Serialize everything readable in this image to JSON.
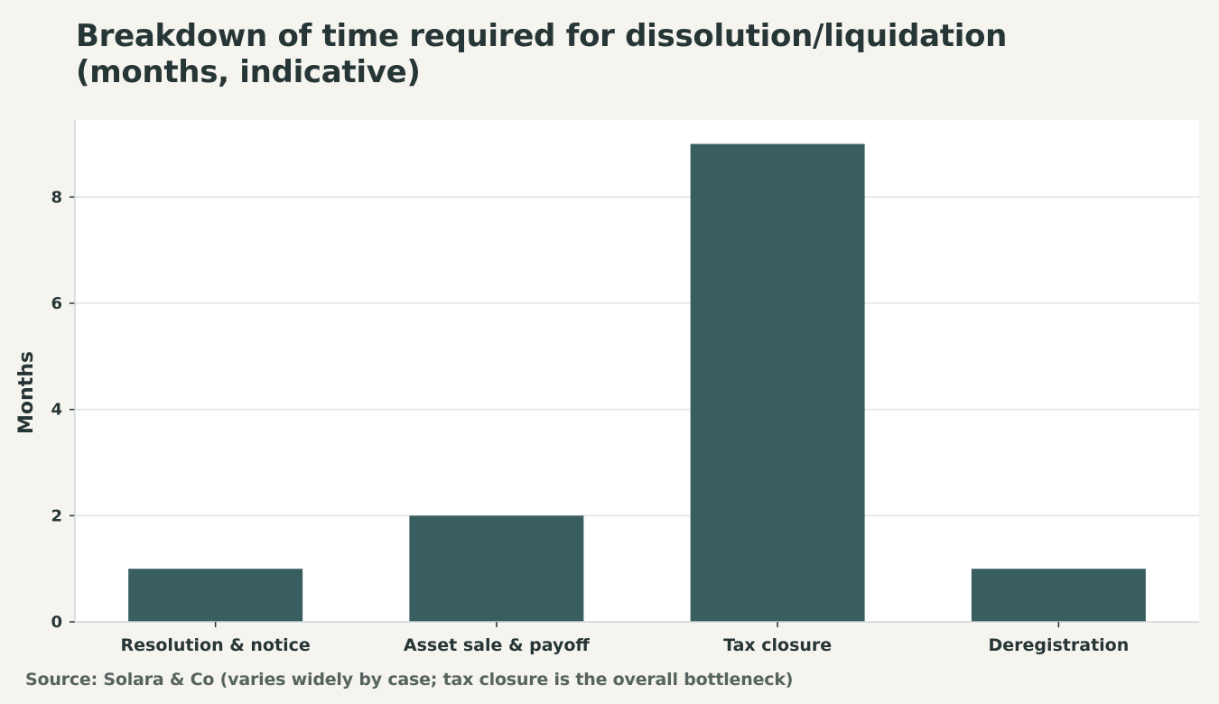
{
  "chart_data": {
    "type": "bar",
    "title": "Breakdown of time required for dissolution/liquidation (months, indicative)",
    "xlabel": "",
    "ylabel": "Months",
    "categories": [
      "Resolution & notice",
      "Asset sale & payoff",
      "Tax closure",
      "Deregistration"
    ],
    "values": [
      1,
      2,
      9,
      1
    ],
    "ylim": [
      0,
      9.45
    ],
    "yticks": [
      0,
      2,
      4,
      6,
      8
    ],
    "grid": "horizontal",
    "bar_color": "#385e5f",
    "source": "Source: Solara & Co (varies widely by case; tax closure is the overall bottleneck)"
  }
}
